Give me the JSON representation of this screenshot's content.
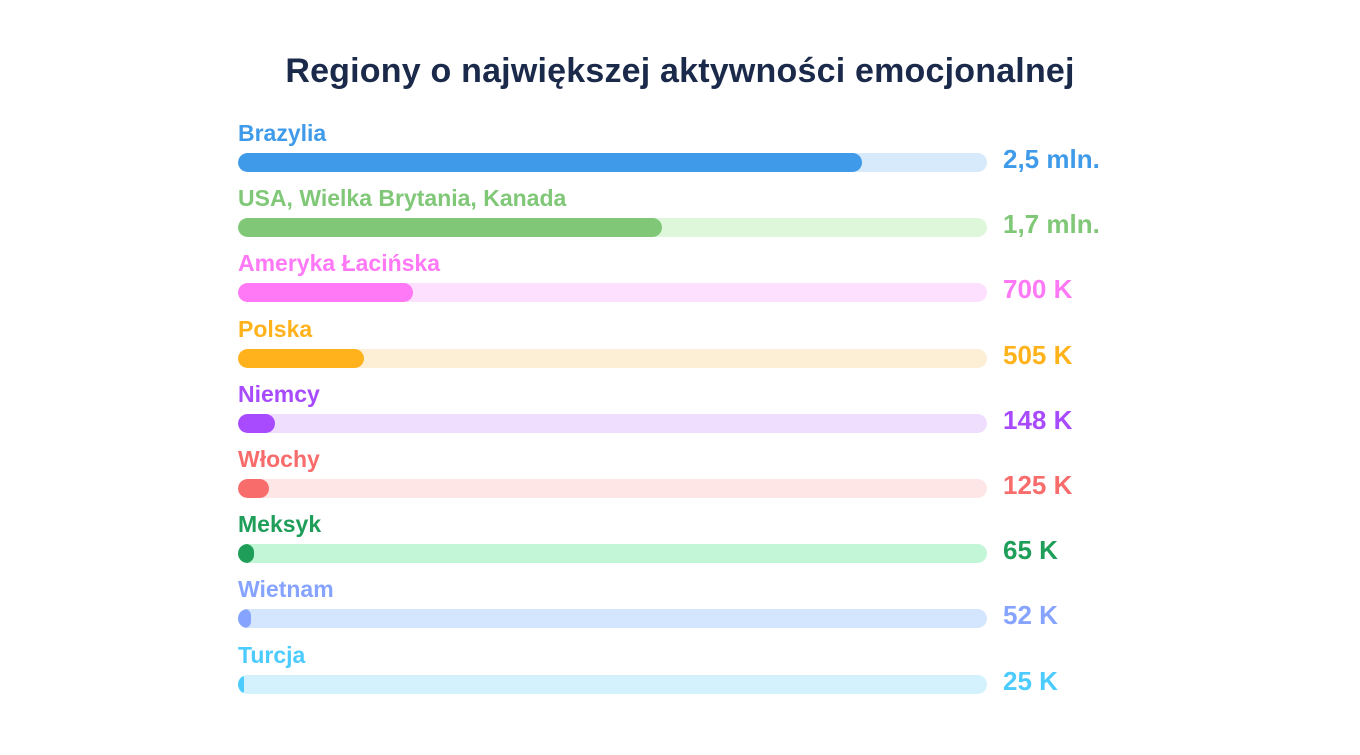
{
  "chart_data": {
    "type": "bar",
    "orientation": "horizontal",
    "title": "Regiony o największej aktywności emocjonalnej",
    "xlim": [
      0,
      3000000
    ],
    "grid": false,
    "categories": [
      "Brazylia",
      "USA, Wielka Brytania, Kanada",
      "Ameryka Łacińska",
      "Polska",
      "Niemcy",
      "Włochy",
      "Meksyk",
      "Wietnam",
      "Turcja"
    ],
    "values": [
      2500000,
      1700000,
      700000,
      505000,
      148000,
      125000,
      65000,
      52000,
      25000
    ],
    "value_labels": [
      "2,5 mln.",
      "1,7 mln.",
      "700 K",
      "505 K",
      "148 K",
      "125 K",
      "65 K",
      "52 K",
      "25 K"
    ],
    "colors": [
      "#3f9be9",
      "#80c878",
      "#ff78f5",
      "#ffb21c",
      "#a84bff",
      "#f86c6c",
      "#1f9e5a",
      "#86a4ff",
      "#4ccbff"
    ],
    "track_colors": [
      "#d6eafb",
      "#def7db",
      "#fde0fd",
      "#fdefd5",
      "#efdefe",
      "#fee6e6",
      "#c3f6d7",
      "#d4e6fd",
      "#d3f2fd"
    ]
  }
}
